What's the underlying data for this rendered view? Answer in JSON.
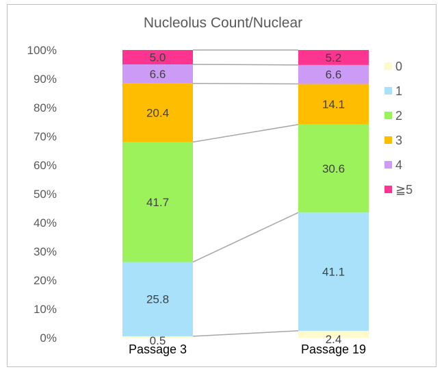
{
  "chart_data": {
    "type": "bar",
    "stacked": true,
    "title": "Nucleolus Count/Nuclear",
    "categories": [
      "Passage 3",
      "Passage 19"
    ],
    "ylim": [
      0,
      100
    ],
    "yticks": [
      "0%",
      "10%",
      "20%",
      "30%",
      "40%",
      "50%",
      "60%",
      "70%",
      "80%",
      "90%",
      "100%"
    ],
    "legend_position": "right",
    "series": [
      {
        "name": "0",
        "color": "#fdfacc",
        "values": [
          0.5,
          2.4
        ],
        "labels": [
          "0.5",
          "2.4"
        ]
      },
      {
        "name": "1",
        "color": "#a9e1fb",
        "values": [
          25.8,
          41.1
        ],
        "labels": [
          "25.8",
          "41.1"
        ]
      },
      {
        "name": "2",
        "color": "#9cf25a",
        "values": [
          41.7,
          30.6
        ],
        "labels": [
          "41.7",
          "30.6"
        ]
      },
      {
        "name": "3",
        "color": "#ffbd00",
        "values": [
          20.4,
          14.1
        ],
        "labels": [
          "20.4",
          "14.1"
        ]
      },
      {
        "name": "4",
        "color": "#cb9bf5",
        "values": [
          6.6,
          6.6
        ],
        "labels": [
          "6.6",
          "6.6"
        ]
      },
      {
        "name": "≧5",
        "color": "#fb3590",
        "values": [
          5.0,
          5.2
        ],
        "labels": [
          "5.0",
          "5.2"
        ]
      }
    ]
  }
}
